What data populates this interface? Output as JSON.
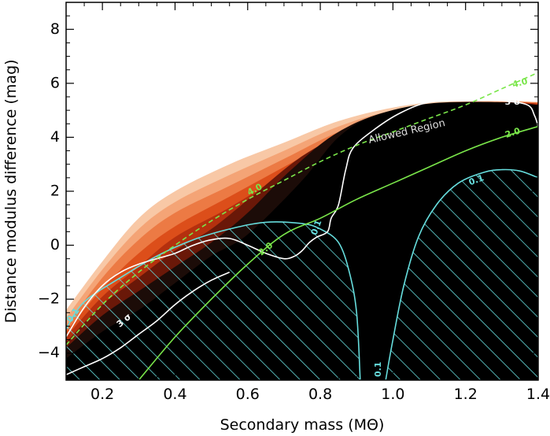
{
  "chart_data": {
    "type": "area",
    "xlabel": "Secondary mass (MΘ)",
    "ylabel": "Distance modulus difference (mag)",
    "xlim": [
      0.1,
      1.4
    ],
    "ylim": [
      -5,
      9
    ],
    "x_ticks": [
      0.2,
      0.4,
      0.6,
      0.8,
      1.0,
      1.2,
      1.4
    ],
    "x_tick_labels": [
      "0.2",
      "0.4",
      "0.6",
      "0.8",
      "1.0",
      "1.2",
      "1.4"
    ],
    "y_ticks": [
      -4,
      -2,
      0,
      2,
      4,
      6,
      8
    ],
    "y_tick_labels": [
      "−4",
      "−2",
      "0",
      "2",
      "4",
      "6",
      "8"
    ],
    "annotations": [
      {
        "text": "Allowed Region",
        "x": 1.04,
        "y": 4.1,
        "angle": -13,
        "color": "#dddddd"
      }
    ],
    "probability_bands": {
      "description": "Filled probability density, light orange outer to black inner",
      "colors": [
        "#f8c8a6",
        "#f4a476",
        "#ec7a44",
        "#dc4e1a",
        "#b4300e",
        "#6a1808",
        "#1c0c08",
        "#000000"
      ],
      "upper_edges": [
        [
          [
            0.1,
            -2.4
          ],
          [
            0.2,
            -0.6
          ],
          [
            0.3,
            1.0
          ],
          [
            0.4,
            2.0
          ],
          [
            0.55,
            3.0
          ],
          [
            0.7,
            3.8
          ],
          [
            0.85,
            4.6
          ],
          [
            1.0,
            5.1
          ],
          [
            1.15,
            5.35
          ],
          [
            1.3,
            5.35
          ],
          [
            1.4,
            5.3
          ]
        ],
        [
          [
            0.1,
            -2.7
          ],
          [
            0.2,
            -0.9
          ],
          [
            0.3,
            0.6
          ],
          [
            0.4,
            1.6
          ],
          [
            0.55,
            2.6
          ],
          [
            0.7,
            3.5
          ],
          [
            0.85,
            4.4
          ],
          [
            1.0,
            5.0
          ],
          [
            1.15,
            5.3
          ],
          [
            1.3,
            5.35
          ],
          [
            1.4,
            5.3
          ]
        ],
        [
          [
            0.1,
            -3.0
          ],
          [
            0.2,
            -1.2
          ],
          [
            0.3,
            0.2
          ],
          [
            0.4,
            1.2
          ],
          [
            0.55,
            2.2
          ],
          [
            0.7,
            3.2
          ],
          [
            0.85,
            4.2
          ],
          [
            1.0,
            4.9
          ],
          [
            1.15,
            5.25
          ],
          [
            1.3,
            5.3
          ],
          [
            1.4,
            5.3
          ]
        ],
        [
          [
            0.1,
            -3.2
          ],
          [
            0.2,
            -1.6
          ],
          [
            0.3,
            -0.3
          ],
          [
            0.4,
            0.7
          ],
          [
            0.55,
            1.8
          ],
          [
            0.7,
            2.9
          ],
          [
            0.85,
            4.0
          ],
          [
            1.0,
            4.8
          ],
          [
            1.15,
            5.2
          ],
          [
            1.3,
            5.3
          ],
          [
            1.4,
            5.25
          ]
        ],
        [
          [
            0.1,
            -3.4
          ],
          [
            0.2,
            -1.9
          ],
          [
            0.3,
            -0.8
          ],
          [
            0.4,
            0.3
          ],
          [
            0.55,
            1.4
          ],
          [
            0.68,
            2.5
          ],
          [
            0.8,
            3.7
          ],
          [
            0.95,
            4.6
          ],
          [
            1.1,
            5.15
          ],
          [
            1.3,
            5.3
          ],
          [
            1.4,
            5.25
          ]
        ],
        [
          [
            0.1,
            -3.6
          ],
          [
            0.2,
            -2.2
          ],
          [
            0.3,
            -1.2
          ],
          [
            0.4,
            -0.2
          ],
          [
            0.5,
            0.6
          ],
          [
            0.62,
            1.9
          ],
          [
            0.75,
            3.3
          ],
          [
            0.9,
            4.4
          ],
          [
            1.05,
            5.1
          ],
          [
            1.25,
            5.3
          ],
          [
            1.4,
            5.2
          ]
        ],
        [
          [
            0.1,
            -3.8
          ],
          [
            0.2,
            -2.6
          ],
          [
            0.3,
            -1.7
          ],
          [
            0.4,
            -0.8
          ],
          [
            0.5,
            0.1
          ],
          [
            0.6,
            1.2
          ],
          [
            0.72,
            2.8
          ],
          [
            0.85,
            4.2
          ],
          [
            1.0,
            5.0
          ],
          [
            1.2,
            5.3
          ],
          [
            1.4,
            5.2
          ]
        ],
        [
          [
            0.1,
            -4.2
          ],
          [
            0.2,
            -3.2
          ],
          [
            0.3,
            -2.4
          ],
          [
            0.4,
            -1.4
          ],
          [
            0.5,
            -0.4
          ],
          [
            0.6,
            0.4
          ],
          [
            0.75,
            2.4
          ],
          [
            0.85,
            4.0
          ],
          [
            0.95,
            4.8
          ],
          [
            1.1,
            5.25
          ],
          [
            1.3,
            5.3
          ],
          [
            1.4,
            5.2
          ]
        ]
      ]
    },
    "contours": [
      {
        "label": "0.1",
        "color": "#66dddd",
        "style": "solid",
        "points": [
          [
            0.1,
            -3.1
          ],
          [
            0.15,
            -2.1
          ],
          [
            0.25,
            -1.2
          ],
          [
            0.35,
            -0.4
          ],
          [
            0.45,
            0.2
          ],
          [
            0.55,
            0.6
          ],
          [
            0.65,
            0.85
          ],
          [
            0.75,
            0.8
          ],
          [
            0.8,
            0.6
          ],
          [
            0.85,
            0.1
          ],
          [
            0.88,
            -1.0
          ],
          [
            0.9,
            -2.5
          ],
          [
            0.91,
            -5.0
          ]
        ]
      },
      {
        "label": "0.1",
        "color": "#66dddd",
        "style": "solid",
        "points": [
          [
            0.98,
            -5.0
          ],
          [
            1.0,
            -3.5
          ],
          [
            1.03,
            -1.5
          ],
          [
            1.07,
            0.3
          ],
          [
            1.12,
            1.5
          ],
          [
            1.18,
            2.3
          ],
          [
            1.25,
            2.7
          ],
          [
            1.3,
            2.8
          ],
          [
            1.35,
            2.75
          ],
          [
            1.4,
            2.5
          ]
        ]
      },
      {
        "label": "3 σ",
        "color": "#ffffff",
        "style": "solid",
        "points": [
          [
            0.1,
            -3.4
          ],
          [
            0.15,
            -2.3
          ],
          [
            0.2,
            -1.5
          ],
          [
            0.25,
            -1.0
          ],
          [
            0.3,
            -0.7
          ],
          [
            0.35,
            -0.5
          ],
          [
            0.4,
            -0.3
          ],
          [
            0.45,
            0.0
          ],
          [
            0.5,
            0.2
          ],
          [
            0.55,
            0.25
          ],
          [
            0.6,
            0.0
          ],
          [
            0.65,
            -0.3
          ],
          [
            0.7,
            -0.5
          ],
          [
            0.73,
            -0.4
          ],
          [
            0.75,
            -0.2
          ],
          [
            0.77,
            0.1
          ],
          [
            0.79,
            0.3
          ],
          [
            0.82,
            0.5
          ],
          [
            0.83,
            1.0
          ],
          [
            0.85,
            1.5
          ],
          [
            0.87,
            2.8
          ],
          [
            0.89,
            3.6
          ],
          [
            0.95,
            4.3
          ],
          [
            1.02,
            4.9
          ],
          [
            1.1,
            5.3
          ],
          [
            1.2,
            5.35
          ],
          [
            1.3,
            5.35
          ],
          [
            1.37,
            5.2
          ],
          [
            1.39,
            4.8
          ],
          [
            1.4,
            4.4
          ]
        ]
      },
      {
        "label": "3 σ",
        "color": "#ffffff",
        "style": "solid",
        "points": [
          [
            0.1,
            -4.8
          ],
          [
            0.15,
            -4.5
          ],
          [
            0.2,
            -4.2
          ],
          [
            0.25,
            -3.8
          ],
          [
            0.3,
            -3.3
          ],
          [
            0.35,
            -2.8
          ],
          [
            0.4,
            -2.2
          ],
          [
            0.45,
            -1.7
          ],
          [
            0.5,
            -1.3
          ],
          [
            0.55,
            -1.0
          ]
        ]
      },
      {
        "label": "4.0",
        "color": "#7ae64a",
        "style": "dashed",
        "points": [
          [
            0.1,
            -3.7
          ],
          [
            0.2,
            -2.2
          ],
          [
            0.3,
            -1.0
          ],
          [
            0.4,
            0.0
          ],
          [
            0.5,
            0.9
          ],
          [
            0.6,
            1.7
          ],
          [
            0.7,
            2.4
          ],
          [
            0.8,
            3.1
          ],
          [
            0.9,
            3.7
          ],
          [
            1.0,
            4.2
          ],
          [
            1.1,
            4.7
          ],
          [
            1.2,
            5.2
          ],
          [
            1.3,
            5.8
          ],
          [
            1.4,
            6.4
          ]
        ]
      },
      {
        "label": "2.0",
        "color": "#7ae64a",
        "style": "solid",
        "points": [
          [
            0.3,
            -5.0
          ],
          [
            0.4,
            -3.4
          ],
          [
            0.5,
            -2.0
          ],
          [
            0.6,
            -0.7
          ],
          [
            0.7,
            0.4
          ],
          [
            0.8,
            1.0
          ],
          [
            0.9,
            1.7
          ],
          [
            1.0,
            2.3
          ],
          [
            1.1,
            2.9
          ],
          [
            1.2,
            3.5
          ],
          [
            1.3,
            4.0
          ],
          [
            1.4,
            4.4
          ]
        ]
      }
    ],
    "contour_labels": [
      {
        "text": "0.1",
        "x": 0.12,
        "y": -2.6,
        "color": "#66dddd",
        "angle": -55
      },
      {
        "text": "3 σ",
        "x": 0.26,
        "y": -2.8,
        "color": "#ffffff",
        "angle": -40
      },
      {
        "text": "0.1",
        "x": 0.79,
        "y": 0.65,
        "color": "#66dddd",
        "angle": -70
      },
      {
        "text": "0.1",
        "x": 0.96,
        "y": -4.6,
        "color": "#66dddd",
        "angle": -90
      },
      {
        "text": "0.1",
        "x": 1.23,
        "y": 2.4,
        "color": "#66dddd",
        "angle": -20
      },
      {
        "text": "3 σ",
        "x": 1.33,
        "y": 5.3,
        "color": "#ffffff",
        "angle": 0
      },
      {
        "text": "4.0",
        "x": 0.62,
        "y": 2.05,
        "color": "#7ae64a",
        "angle": -28
      },
      {
        "text": "4.0",
        "x": 1.35,
        "y": 6.0,
        "color": "#7ae64a",
        "angle": -15
      },
      {
        "text": "2.0",
        "x": 0.65,
        "y": -0.15,
        "color": "#7ae64a",
        "angle": -38
      },
      {
        "text": "2.0",
        "x": 1.33,
        "y": 4.15,
        "color": "#7ae64a",
        "angle": -18
      }
    ],
    "hatched_regions": [
      {
        "color": "#66dddd",
        "bounded_by_contour": 0,
        "closes_to": "bottom-left"
      },
      {
        "color": "#66dddd",
        "bounded_by_contour": 1,
        "closes_to": "bottom-right"
      }
    ],
    "grid": false
  }
}
